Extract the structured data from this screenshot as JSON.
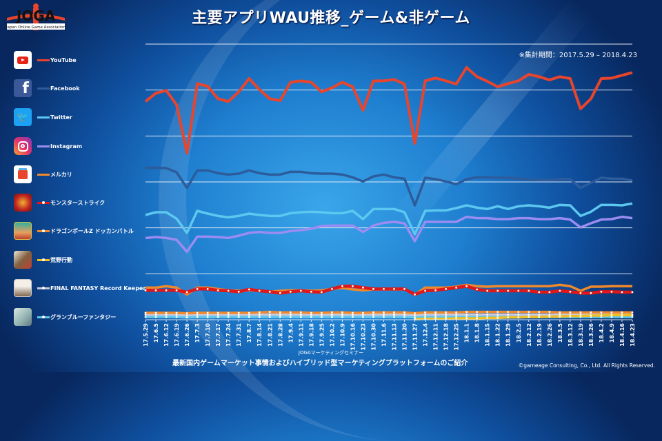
{
  "title": "主要アプリWAU推移_ゲーム&非ゲーム",
  "logo": {
    "text": "JOGA",
    "subtext": "Japan Online Game Association"
  },
  "period_note": "※集計期間：2017.5.29 – 2018.4.23",
  "footer": {
    "seminar": "JOGAマーケティングセミナー",
    "subtitle": "最新国内ゲームマーケット事情およびハイブリッド型マーケティングプラットフォームのご紹介",
    "copyright": "©gameage Consulting, Co., Ltd. All Rights Reserved."
  },
  "chart_data": {
    "type": "line",
    "title": "主要アプリWAU推移_ゲーム&非ゲーム",
    "xlabel": "",
    "ylabel": "",
    "ylim": [
      0,
      6
    ],
    "grid": true,
    "y_units": "relative (gridline intervals, no axis values shown)",
    "legend_position": "left",
    "x": [
      "17.5.29",
      "17.6.5",
      "17.6.12",
      "17.6.19",
      "17.6.26",
      "17.7.3",
      "17.7.10",
      "17.7.17",
      "17.7.24",
      "17.7.31",
      "17.8.7",
      "17.8.14",
      "17.8.21",
      "17.8.28",
      "17.9.4",
      "17.9.11",
      "17.9.18",
      "17.9.25",
      "17.10.2",
      "17.10.9",
      "17.10.16",
      "17.10.23",
      "17.10.30",
      "17.11.6",
      "17.11.13",
      "17.11.20",
      "17.11.27",
      "17.12.4",
      "17.12.11",
      "17.12.18",
      "17.12.25",
      "18.1.1",
      "18.1.8",
      "18.1.15",
      "18.1.22",
      "18.1.29",
      "18.2.5",
      "18.2.12",
      "18.2.19",
      "18.2.26",
      "18.3.5",
      "18.3.12",
      "18.3.19",
      "18.3.26",
      "18.4.2",
      "18.4.9",
      "18.4.16",
      "18.4.23"
    ],
    "series": [
      {
        "name": "YouTube",
        "icon": "youtube-icon",
        "color": "#e8452c",
        "markers": false,
        "values": [
          4.75,
          4.93,
          4.99,
          4.68,
          3.63,
          5.14,
          5.08,
          4.81,
          4.75,
          4.96,
          5.25,
          5.01,
          4.81,
          4.77,
          5.17,
          5.2,
          5.17,
          4.96,
          5.05,
          5.17,
          5.07,
          4.56,
          5.2,
          5.2,
          5.23,
          5.13,
          3.84,
          5.2,
          5.26,
          5.2,
          5.13,
          5.49,
          5.29,
          5.19,
          5.07,
          5.14,
          5.2,
          5.34,
          5.29,
          5.22,
          5.29,
          5.25,
          4.59,
          4.81,
          5.25,
          5.26,
          5.32,
          5.38
        ]
      },
      {
        "name": "Facebook",
        "icon": "facebook-icon",
        "color": "#2c5c9c",
        "markers": false,
        "values": [
          3.31,
          3.31,
          3.3,
          3.21,
          2.87,
          3.25,
          3.25,
          3.19,
          3.16,
          3.18,
          3.25,
          3.19,
          3.16,
          3.16,
          3.22,
          3.22,
          3.19,
          3.18,
          3.18,
          3.16,
          3.1,
          3.01,
          3.12,
          3.16,
          3.1,
          3.07,
          2.49,
          3.09,
          3.06,
          3.01,
          2.95,
          3.06,
          3.1,
          3.1,
          3.09,
          3.09,
          3.07,
          3.06,
          3.04,
          3.04,
          3.06,
          3.06,
          2.87,
          2.98,
          3.09,
          3.07,
          3.07,
          3.03
        ]
      },
      {
        "name": "Twitter",
        "icon": "twitter-icon",
        "color": "#5cc8f0",
        "markers": false,
        "values": [
          2.28,
          2.34,
          2.34,
          2.2,
          1.89,
          2.37,
          2.31,
          2.26,
          2.23,
          2.26,
          2.31,
          2.28,
          2.26,
          2.26,
          2.32,
          2.34,
          2.35,
          2.34,
          2.32,
          2.32,
          2.37,
          2.19,
          2.41,
          2.41,
          2.41,
          2.34,
          1.86,
          2.37,
          2.38,
          2.38,
          2.43,
          2.49,
          2.44,
          2.41,
          2.47,
          2.41,
          2.47,
          2.49,
          2.47,
          2.44,
          2.5,
          2.49,
          2.26,
          2.35,
          2.5,
          2.5,
          2.49,
          2.53
        ]
      },
      {
        "name": "Instagram",
        "icon": "instagram-icon",
        "color": "#9b8cf2",
        "markers": false,
        "values": [
          1.78,
          1.8,
          1.78,
          1.74,
          1.48,
          1.81,
          1.81,
          1.8,
          1.78,
          1.83,
          1.89,
          1.91,
          1.89,
          1.89,
          1.93,
          1.95,
          1.98,
          2.04,
          2.05,
          2.05,
          2.05,
          1.91,
          2.05,
          2.11,
          2.13,
          2.1,
          1.71,
          2.13,
          2.13,
          2.13,
          2.13,
          2.24,
          2.21,
          2.21,
          2.19,
          2.19,
          2.21,
          2.21,
          2.19,
          2.19,
          2.21,
          2.18,
          2.01,
          2.1,
          2.18,
          2.19,
          2.24,
          2.21
        ]
      },
      {
        "name": "メルカリ",
        "icon": "mercari-icon",
        "color": "#f0892c",
        "markers": false,
        "values": [
          0.7,
          0.7,
          0.73,
          0.7,
          0.55,
          0.7,
          0.7,
          0.67,
          0.64,
          0.63,
          0.64,
          0.63,
          0.61,
          0.63,
          0.64,
          0.64,
          0.63,
          0.64,
          0.67,
          0.69,
          0.66,
          0.64,
          0.66,
          0.66,
          0.66,
          0.66,
          0.54,
          0.7,
          0.7,
          0.7,
          0.72,
          0.76,
          0.73,
          0.72,
          0.73,
          0.73,
          0.73,
          0.73,
          0.73,
          0.73,
          0.76,
          0.73,
          0.63,
          0.72,
          0.72,
          0.73,
          0.73,
          0.73
        ]
      },
      {
        "name": "モンスターストライク",
        "icon": "monster-strike-icon",
        "color": "#e01818",
        "markers": true,
        "values": [
          0.64,
          0.64,
          0.64,
          0.64,
          0.6,
          0.67,
          0.67,
          0.64,
          0.63,
          0.61,
          0.66,
          0.63,
          0.61,
          0.58,
          0.61,
          0.63,
          0.61,
          0.6,
          0.67,
          0.73,
          0.73,
          0.7,
          0.67,
          0.67,
          0.67,
          0.67,
          0.55,
          0.63,
          0.64,
          0.67,
          0.7,
          0.73,
          0.66,
          0.63,
          0.63,
          0.63,
          0.63,
          0.63,
          0.6,
          0.6,
          0.63,
          0.61,
          0.58,
          0.58,
          0.61,
          0.61,
          0.6,
          0.6
        ]
      },
      {
        "name": "ドラゴンボールZ ドッカンバトル",
        "icon": "dokkan-battle-icon",
        "color": "#f0892c",
        "markers": true,
        "values": [
          0.15,
          0.15,
          0.15,
          0.15,
          0.14,
          0.15,
          0.15,
          0.15,
          0.15,
          0.15,
          0.15,
          0.16,
          0.17,
          0.16,
          0.16,
          0.16,
          0.15,
          0.15,
          0.16,
          0.16,
          0.15,
          0.15,
          0.16,
          0.16,
          0.16,
          0.16,
          0.14,
          0.16,
          0.16,
          0.16,
          0.16,
          0.17,
          0.17,
          0.17,
          0.17,
          0.17,
          0.17,
          0.17,
          0.17,
          0.17,
          0.16,
          0.16,
          0.16,
          0.16,
          0.16,
          0.16,
          0.16,
          0.16
        ]
      },
      {
        "name": "荒野行動",
        "icon": "knives-out-icon",
        "color": "#f0c020",
        "markers": true,
        "values": [
          null,
          null,
          null,
          null,
          null,
          null,
          null,
          null,
          null,
          null,
          null,
          null,
          null,
          null,
          null,
          null,
          null,
          null,
          null,
          null,
          null,
          null,
          null,
          null,
          null,
          null,
          0.01,
          0.02,
          0.02,
          0.02,
          0.03,
          0.03,
          0.03,
          0.04,
          0.04,
          0.05,
          0.05,
          0.06,
          0.06,
          0.07,
          0.07,
          0.08,
          0.08,
          0.09,
          0.09,
          0.1,
          0.1,
          0.1
        ]
      },
      {
        "name": "FINAL FANTASY Record Keeper",
        "icon": "ffrk-icon",
        "color": "#c8c8d8",
        "markers": true,
        "values": [
          0.11,
          0.11,
          0.11,
          0.11,
          0.1,
          0.11,
          0.11,
          0.11,
          0.11,
          0.11,
          0.11,
          0.11,
          0.11,
          0.11,
          0.11,
          0.11,
          0.11,
          0.11,
          0.11,
          0.11,
          0.11,
          0.11,
          0.11,
          0.11,
          0.11,
          0.11,
          0.1,
          0.11,
          0.11,
          0.11,
          0.11,
          0.11,
          0.11,
          0.11,
          0.11,
          0.11,
          0.11,
          0.11,
          0.11,
          0.11,
          0.11,
          0.11,
          0.11,
          0.11,
          0.11,
          0.11,
          0.11,
          0.11
        ]
      },
      {
        "name": "グランブルーファンタジー",
        "icon": "granblue-icon",
        "color": "#5cc8f0",
        "markers": true,
        "values": [
          0.06,
          0.06,
          0.06,
          0.06,
          0.05,
          0.06,
          0.06,
          0.06,
          0.06,
          0.06,
          0.06,
          0.06,
          0.06,
          0.06,
          0.06,
          0.06,
          0.06,
          0.06,
          0.06,
          0.06,
          0.06,
          0.06,
          0.06,
          0.06,
          0.06,
          0.06,
          0.05,
          0.06,
          0.06,
          0.06,
          0.06,
          0.06,
          0.06,
          0.06,
          0.06,
          0.06,
          0.06,
          0.06,
          0.06,
          0.06,
          0.06,
          0.06,
          0.06,
          0.06,
          0.06,
          0.06,
          0.06,
          0.06
        ]
      }
    ]
  }
}
